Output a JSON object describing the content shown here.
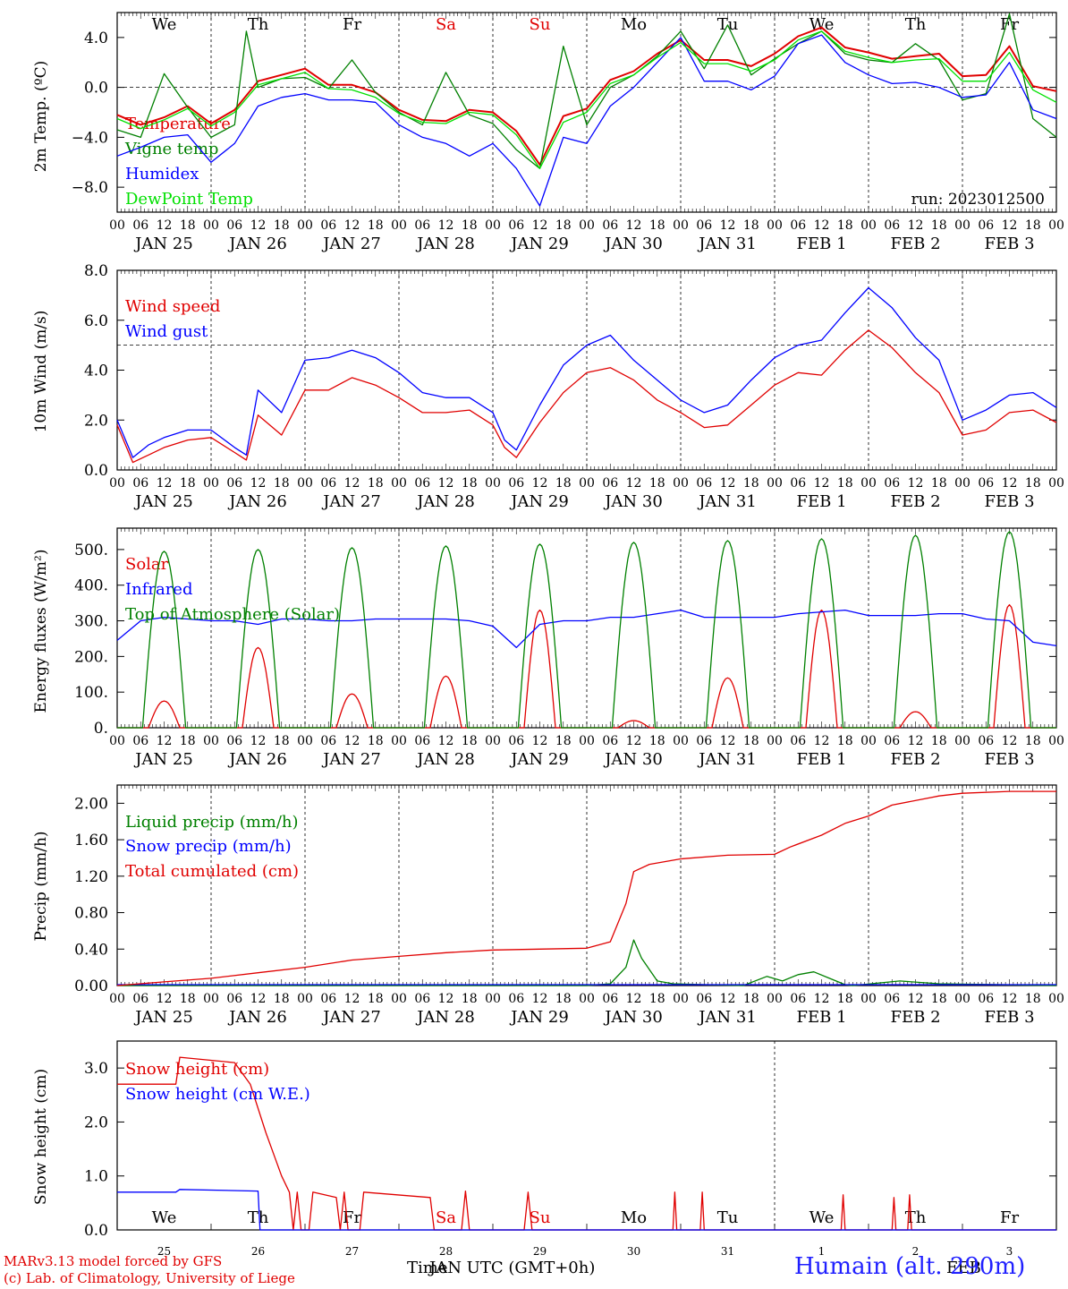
{
  "meta": {
    "run": "run: 2023012500",
    "model": "MARv3.13 model forced by GFS",
    "copyright": "(c) Lab. of Climatology, University of Liege",
    "site": "Humain (alt. 290m)",
    "xtitle_time": "Time",
    "xtitle_utc": "JAN UTC (GMT+0h)",
    "xtitle_feb": "FEB"
  },
  "colors": {
    "red": "#e00000",
    "green": "#008000",
    "blue": "#0000ff",
    "lime": "#00e000"
  },
  "days": {
    "weekdays": [
      "We",
      "Th",
      "Fr",
      "Sa",
      "Su",
      "Mo",
      "Tu",
      "We",
      "Th",
      "Fr"
    ],
    "weekday_colors": [
      "#000000",
      "#000000",
      "#000000",
      "#e00000",
      "#e00000",
      "#000000",
      "#000000",
      "#000000",
      "#000000",
      "#000000"
    ],
    "dates": [
      "JAN  25",
      "JAN  26",
      "JAN  27",
      "JAN  28",
      "JAN  29",
      "JAN  30",
      "JAN  31",
      "FEB   1",
      "FEB   2",
      "FEB   3"
    ],
    "hour_ticks": [
      "00",
      "06",
      "12",
      "18"
    ],
    "bottom_dates": [
      "25",
      "26",
      "27",
      "28",
      "29",
      "30",
      "31",
      "1",
      "2",
      "3"
    ]
  },
  "chart_data": [
    {
      "type": "line",
      "id": "temperature",
      "ylabel": "2m Temp. (ºC)",
      "ylim": [
        -10,
        6
      ],
      "yticks": [
        "4.0",
        "0.0",
        "−4.0",
        "−8.0"
      ],
      "ytick_values": [
        4,
        0,
        -4,
        -8
      ],
      "x_unit": "hours since JAN 25 00 UTC",
      "xlim": [
        0,
        240
      ],
      "ref_line": 0,
      "series": [
        {
          "name": "Temperature",
          "color": "#e00000",
          "width": 2,
          "x": [
            0,
            6,
            12,
            18,
            24,
            30,
            36,
            42,
            48,
            54,
            60,
            66,
            72,
            78,
            84,
            90,
            96,
            102,
            108,
            114,
            120,
            126,
            132,
            138,
            144,
            150,
            156,
            162,
            168,
            174,
            180,
            186,
            192,
            198,
            204,
            210,
            216,
            222,
            228,
            234,
            240
          ],
          "y": [
            -2.2,
            -3.0,
            -2.4,
            -1.5,
            -2.9,
            -1.8,
            0.5,
            1.0,
            1.5,
            0.2,
            0.2,
            -0.4,
            -1.8,
            -2.6,
            -2.7,
            -1.8,
            -2.0,
            -3.5,
            -6.2,
            -2.3,
            -1.7,
            0.6,
            1.3,
            2.7,
            3.8,
            2.2,
            2.2,
            1.7,
            2.7,
            4.1,
            4.8,
            3.2,
            2.8,
            2.3,
            2.5,
            2.7,
            0.9,
            1.0,
            3.3,
            0.1,
            -0.3
          ]
        },
        {
          "name": "Vigne temp",
          "color": "#008000",
          "width": 1.3,
          "x": [
            0,
            6,
            12,
            18,
            24,
            30,
            33,
            36,
            42,
            48,
            54,
            60,
            66,
            72,
            78,
            84,
            90,
            96,
            102,
            108,
            114,
            120,
            126,
            132,
            138,
            144,
            150,
            156,
            162,
            168,
            174,
            180,
            186,
            192,
            198,
            204,
            210,
            216,
            222,
            228,
            234,
            240
          ],
          "y": [
            -3.4,
            -4.0,
            1.1,
            -1.6,
            -4.0,
            -3.0,
            4.5,
            0.0,
            0.7,
            0.8,
            -0.1,
            2.2,
            -0.4,
            -2.0,
            -3.0,
            1.2,
            -2.2,
            -2.9,
            -5.0,
            -6.5,
            3.3,
            -3.0,
            0.0,
            1.0,
            2.5,
            4.5,
            1.5,
            5.0,
            1.0,
            2.3,
            3.5,
            4.5,
            2.7,
            2.2,
            2.0,
            3.5,
            2.2,
            -1.0,
            -0.5,
            5.9,
            -2.5,
            -4.0
          ]
        },
        {
          "name": "Humidex",
          "color": "#0000ff",
          "width": 1.3,
          "x": [
            0,
            6,
            12,
            18,
            24,
            30,
            36,
            42,
            48,
            54,
            60,
            66,
            72,
            78,
            84,
            90,
            96,
            102,
            108,
            114,
            120,
            126,
            132,
            138,
            144,
            150,
            156,
            162,
            168,
            174,
            180,
            186,
            192,
            198,
            204,
            210,
            216,
            222,
            228,
            234,
            240
          ],
          "y": [
            -5.5,
            -4.8,
            -4.0,
            -3.8,
            -6.0,
            -4.5,
            -1.5,
            -0.8,
            -0.5,
            -1.0,
            -1.0,
            -1.2,
            -3.0,
            -4.0,
            -4.5,
            -5.5,
            -4.5,
            -6.5,
            -9.5,
            -4.0,
            -4.5,
            -1.5,
            0.0,
            2.0,
            4.0,
            0.5,
            0.5,
            -0.2,
            0.9,
            3.5,
            4.2,
            2.0,
            1.0,
            0.3,
            0.4,
            0.0,
            -0.8,
            -0.6,
            2.0,
            -1.8,
            -2.5
          ]
        },
        {
          "name": "DewPoint Temp",
          "color": "#00e000",
          "width": 1.3,
          "x": [
            0,
            6,
            12,
            18,
            24,
            30,
            36,
            42,
            48,
            54,
            60,
            66,
            72,
            78,
            84,
            90,
            96,
            102,
            108,
            114,
            120,
            126,
            132,
            138,
            144,
            150,
            156,
            162,
            168,
            174,
            180,
            186,
            192,
            198,
            204,
            210,
            216,
            222,
            228,
            234,
            240
          ],
          "y": [
            -2.5,
            -3.3,
            -2.6,
            -1.7,
            -3.1,
            -2.0,
            0.2,
            0.7,
            1.2,
            -0.1,
            -0.2,
            -0.8,
            -2.1,
            -2.8,
            -2.9,
            -2.0,
            -2.2,
            -3.8,
            -6.5,
            -2.8,
            -2.0,
            0.3,
            1.0,
            2.4,
            3.6,
            1.9,
            1.9,
            1.3,
            2.2,
            3.8,
            4.5,
            2.9,
            2.4,
            2.0,
            2.2,
            2.3,
            0.5,
            0.5,
            2.8,
            -0.2,
            -1.2
          ]
        }
      ]
    },
    {
      "type": "line",
      "id": "wind",
      "ylabel": "10m Wind (m/s)",
      "ylim": [
        0,
        8
      ],
      "yticks": [
        "8.0",
        "6.0",
        "4.0",
        "2.0",
        "0.0"
      ],
      "ytick_values": [
        8,
        6,
        4,
        2,
        0
      ],
      "x_unit": "hours since JAN 25 00 UTC",
      "xlim": [
        0,
        240
      ],
      "ref_line": 5,
      "series": [
        {
          "name": "Wind speed",
          "color": "#e00000",
          "x": [
            0,
            4,
            8,
            12,
            18,
            24,
            30,
            33,
            36,
            42,
            48,
            54,
            60,
            66,
            72,
            78,
            84,
            90,
            96,
            99,
            102,
            108,
            114,
            120,
            126,
            132,
            138,
            144,
            150,
            156,
            162,
            168,
            174,
            180,
            186,
            192,
            198,
            204,
            210,
            216,
            222,
            228,
            234,
            240
          ],
          "y": [
            1.8,
            0.3,
            0.6,
            0.9,
            1.2,
            1.3,
            0.7,
            0.4,
            2.2,
            1.4,
            3.2,
            3.2,
            3.7,
            3.4,
            2.9,
            2.3,
            2.3,
            2.4,
            1.8,
            0.9,
            0.5,
            1.9,
            3.1,
            3.9,
            4.1,
            3.6,
            2.8,
            2.3,
            1.7,
            1.8,
            2.6,
            3.4,
            3.9,
            3.8,
            4.8,
            5.6,
            4.9,
            3.9,
            3.1,
            1.4,
            1.6,
            2.3,
            2.4,
            1.9
          ]
        },
        {
          "name": "Wind gust",
          "color": "#0000ff",
          "x": [
            0,
            4,
            8,
            12,
            18,
            24,
            30,
            33,
            36,
            42,
            48,
            54,
            60,
            66,
            72,
            78,
            84,
            90,
            96,
            99,
            102,
            108,
            114,
            120,
            126,
            132,
            138,
            144,
            150,
            156,
            162,
            168,
            174,
            180,
            186,
            192,
            198,
            204,
            210,
            216,
            222,
            228,
            234,
            240
          ],
          "y": [
            2.0,
            0.5,
            1.0,
            1.3,
            1.6,
            1.6,
            0.9,
            0.6,
            3.2,
            2.3,
            4.4,
            4.5,
            4.8,
            4.5,
            3.9,
            3.1,
            2.9,
            2.9,
            2.3,
            1.2,
            0.8,
            2.6,
            4.2,
            5.0,
            5.4,
            4.4,
            3.6,
            2.8,
            2.3,
            2.6,
            3.6,
            4.5,
            5.0,
            5.2,
            6.3,
            7.3,
            6.5,
            5.3,
            4.4,
            2.0,
            2.4,
            3.0,
            3.1,
            2.5
          ]
        }
      ]
    },
    {
      "type": "line",
      "id": "energy",
      "ylabel": "Energy fluxes (W/m²)",
      "ylim": [
        0,
        560
      ],
      "yticks": [
        "500.",
        "400.",
        "300.",
        "200.",
        "100.",
        "0."
      ],
      "ytick_values": [
        500,
        400,
        300,
        200,
        100,
        0
      ],
      "x_unit": "hours since JAN 25 00 UTC",
      "xlim": [
        0,
        240
      ],
      "series": [
        {
          "name": "Solar",
          "color": "#e00000",
          "peaks": [
            75,
            225,
            95,
            145,
            330,
            20,
            140,
            330,
            45,
            345
          ]
        },
        {
          "name": "Infrared",
          "color": "#0000ff",
          "x": [
            0,
            6,
            12,
            18,
            24,
            30,
            36,
            42,
            48,
            54,
            60,
            66,
            72,
            78,
            84,
            90,
            96,
            102,
            108,
            114,
            120,
            126,
            132,
            138,
            144,
            150,
            156,
            162,
            168,
            174,
            180,
            186,
            192,
            198,
            204,
            210,
            216,
            222,
            228,
            234,
            240
          ],
          "y": [
            245,
            300,
            310,
            305,
            300,
            300,
            290,
            305,
            305,
            300,
            300,
            305,
            305,
            305,
            305,
            300,
            285,
            225,
            290,
            300,
            300,
            310,
            310,
            320,
            330,
            310,
            310,
            310,
            310,
            320,
            325,
            330,
            315,
            315,
            315,
            320,
            320,
            305,
            300,
            240,
            230
          ]
        },
        {
          "name": "Top of Atmosphere (Solar)",
          "color": "#008000",
          "peaks": [
            495,
            500,
            505,
            510,
            515,
            520,
            525,
            530,
            540,
            550
          ]
        }
      ]
    },
    {
      "type": "line",
      "id": "precip",
      "ylabel": "Precip (mm/h)",
      "ylim": [
        0,
        2.2
      ],
      "yticks": [
        "2.00",
        "1.60",
        "1.20",
        "0.80",
        "0.40",
        "0.00"
      ],
      "ytick_values": [
        2.0,
        1.6,
        1.2,
        0.8,
        0.4,
        0.0
      ],
      "x_unit": "hours since JAN 25 00 UTC",
      "xlim": [
        0,
        240
      ],
      "series": [
        {
          "name": "Liquid precip (mm/h)",
          "color": "#008000",
          "x": [
            0,
            120,
            126,
            130,
            132,
            134,
            138,
            142,
            150,
            160,
            166,
            170,
            174,
            178,
            182,
            186,
            188,
            200,
            210,
            240
          ],
          "y": [
            0,
            0,
            0.02,
            0.2,
            0.5,
            0.3,
            0.05,
            0.02,
            0.01,
            0,
            0.1,
            0.05,
            0.12,
            0.15,
            0.08,
            0.01,
            0,
            0.05,
            0.02,
            0
          ]
        },
        {
          "name": "Snow precip (mm/h)",
          "color": "#0000ff",
          "x": [
            0,
            240
          ],
          "y": [
            0.01,
            0.01
          ]
        },
        {
          "name": "Total cumulated (cm)",
          "color": "#e00000",
          "x": [
            0,
            12,
            24,
            36,
            48,
            60,
            72,
            84,
            96,
            108,
            120,
            126,
            130,
            132,
            136,
            144,
            156,
            168,
            172,
            180,
            186,
            192,
            198,
            210,
            216,
            228,
            240
          ],
          "y": [
            0.0,
            0.04,
            0.08,
            0.14,
            0.2,
            0.28,
            0.32,
            0.36,
            0.39,
            0.4,
            0.41,
            0.48,
            0.9,
            1.25,
            1.33,
            1.39,
            1.43,
            1.44,
            1.52,
            1.65,
            1.78,
            1.86,
            1.98,
            2.08,
            2.11,
            2.13,
            2.13
          ]
        }
      ]
    },
    {
      "type": "line",
      "id": "snow",
      "ylabel": "Snow height (cm)",
      "ylim": [
        0,
        3.5
      ],
      "yticks": [
        "3.0",
        "2.0",
        "1.0",
        "0.0"
      ],
      "ytick_values": [
        3.0,
        2.0,
        1.0,
        0.0
      ],
      "x_unit": "hours since JAN 25 00 UTC",
      "xlim": [
        0,
        240
      ],
      "series": [
        {
          "name": "Snow height (cm)",
          "color": "#e00000",
          "x": [
            0,
            15,
            16,
            30,
            34,
            38,
            42,
            44,
            45,
            46,
            47,
            49,
            50,
            56,
            57,
            58,
            59,
            62,
            63,
            80,
            81,
            82,
            88,
            89,
            90,
            104,
            105,
            106,
            112,
            113,
            114,
            142,
            142.5,
            143,
            149,
            149.5,
            150,
            185,
            185.5,
            186,
            198,
            198.5,
            199,
            202,
            202.5,
            203,
            240
          ],
          "y": [
            2.7,
            2.7,
            3.2,
            3.1,
            2.7,
            1.8,
            1.0,
            0.7,
            0.0,
            0.7,
            0.0,
            0.0,
            0.7,
            0.6,
            0.0,
            0.7,
            0.0,
            0.0,
            0.7,
            0.6,
            0.0,
            0.0,
            0.0,
            0.72,
            0.0,
            0.0,
            0.7,
            0.0,
            0.0,
            0.0,
            0.0,
            0.0,
            0.7,
            0.0,
            0.0,
            0.7,
            0.0,
            0.0,
            0.65,
            0.0,
            0.0,
            0.6,
            0.0,
            0.0,
            0.65,
            0.0,
            0.0
          ]
        },
        {
          "name": "Snow height (cm W.E.)",
          "color": "#0000ff",
          "x": [
            0,
            15,
            16,
            36,
            36.5,
            240
          ],
          "y": [
            0.7,
            0.7,
            0.75,
            0.72,
            0.0,
            0.0
          ]
        }
      ]
    }
  ]
}
